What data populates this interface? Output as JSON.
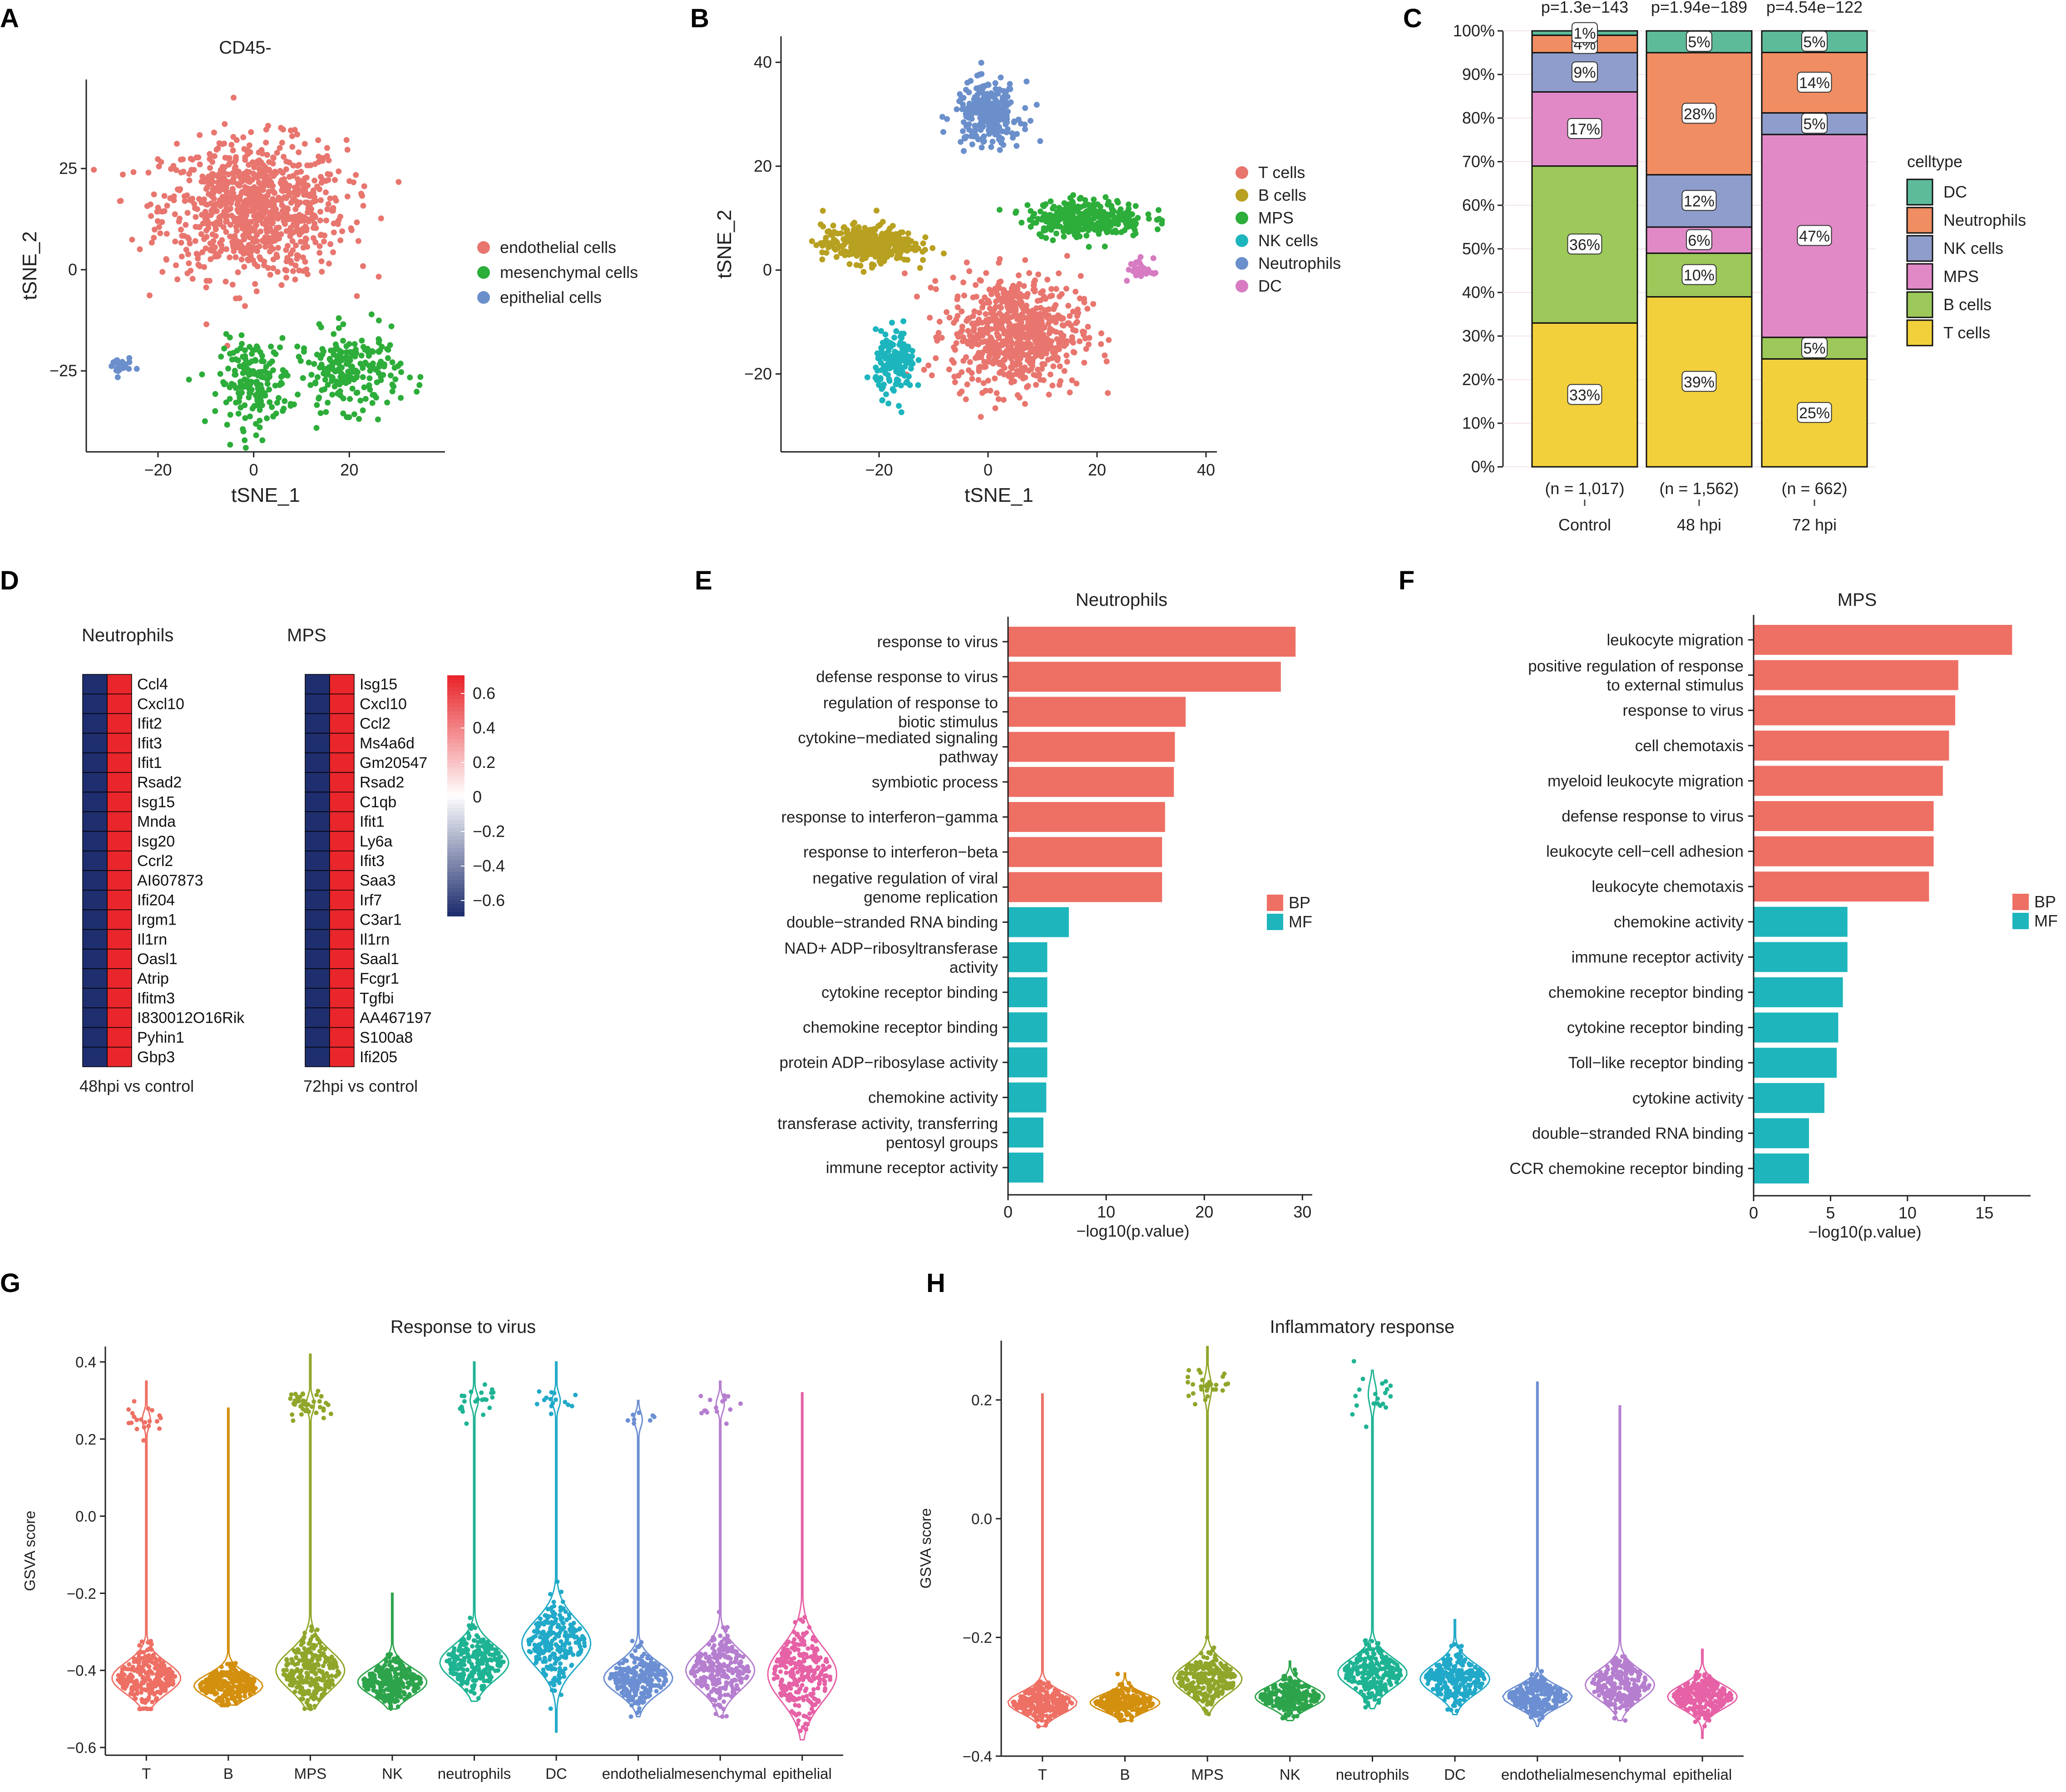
{
  "panels": {
    "A": {
      "label": "A",
      "title": "CD45-",
      "chart_data": {
        "type": "scatter",
        "xlabel": "tSNE_1",
        "ylabel": "tSNE_2",
        "xlim": [
          -35,
          40
        ],
        "ylim": [
          -45,
          47
        ],
        "xticks": [
          -20,
          0,
          20
        ],
        "yticks": [
          -25,
          0,
          25
        ],
        "xtick_labels": [
          "−20",
          "0",
          "20"
        ],
        "ytick_labels": [
          "−25",
          "0",
          "25"
        ],
        "legend": [
          {
            "name": "endothelial cells",
            "color": "#E8766F"
          },
          {
            "name": "mesenchymal cells",
            "color": "#2DAD3A"
          },
          {
            "name": "epithelial cells",
            "color": "#6A8FCB"
          }
        ],
        "clusters": [
          {
            "series": "endothelial cells",
            "cx": 0,
            "cy": 15,
            "sx": 16,
            "sy": 14,
            "n": 900
          },
          {
            "series": "mesenchymal cells",
            "cx": 0,
            "cy": -28,
            "sx": 6,
            "sy": 9,
            "n": 180
          },
          {
            "series": "mesenchymal cells",
            "cx": 20,
            "cy": -25,
            "sx": 9,
            "sy": 8,
            "n": 220
          },
          {
            "series": "epithelial cells",
            "cx": -28,
            "cy": -24,
            "sx": 2,
            "sy": 2,
            "n": 25
          }
        ]
      }
    },
    "B": {
      "label": "B",
      "chart_data": {
        "type": "scatter",
        "xlabel": "tSNE_1",
        "ylabel": "tSNE_2",
        "xlim": [
          -38,
          42
        ],
        "ylim": [
          -35,
          45
        ],
        "xticks": [
          -20,
          0,
          20,
          40
        ],
        "yticks": [
          -20,
          0,
          20,
          40
        ],
        "xtick_labels": [
          "−20",
          "0",
          "20",
          "40"
        ],
        "ytick_labels": [
          "−20",
          "0",
          "20",
          "40"
        ],
        "legend": [
          {
            "name": "T cells",
            "color": "#E8766F"
          },
          {
            "name": "B cells",
            "color": "#B8A020"
          },
          {
            "name": "MPS",
            "color": "#2DAD3A"
          },
          {
            "name": "NK cells",
            "color": "#1DB5BD"
          },
          {
            "name": "Neutrophils",
            "color": "#6A8FCB"
          },
          {
            "name": "DC",
            "color": "#D77BC2"
          }
        ],
        "clusters": [
          {
            "series": "T cells",
            "cx": 5,
            "cy": -12,
            "sx": 10,
            "sy": 9,
            "n": 700
          },
          {
            "series": "B cells",
            "cx": -22,
            "cy": 5,
            "sx": 7,
            "sy": 3,
            "n": 350
          },
          {
            "series": "MPS",
            "cx": 18,
            "cy": 10,
            "sx": 9,
            "sy": 3,
            "n": 300
          },
          {
            "series": "NK cells",
            "cx": -17,
            "cy": -18,
            "sx": 3,
            "sy": 5,
            "n": 150
          },
          {
            "series": "Neutrophils",
            "cx": 0,
            "cy": 30,
            "sx": 5,
            "sy": 5,
            "n": 250
          },
          {
            "series": "DC",
            "cx": 28,
            "cy": 0,
            "sx": 2,
            "sy": 2,
            "n": 30
          }
        ]
      }
    },
    "C": {
      "label": "C",
      "chart_data": {
        "type": "bar",
        "stacked": true,
        "categories": [
          "Control",
          "48 hpi",
          "72 hpi"
        ],
        "n_labels": [
          "(n = 1,017)",
          "(n = 1,562)",
          "(n = 662)"
        ],
        "pvalues": [
          "p=1.3e−143",
          "p=1.94e−189",
          "p=4.54e−122"
        ],
        "yticks": [
          "0%",
          "10%",
          "20%",
          "30%",
          "40%",
          "50%",
          "60%",
          "70%",
          "80%",
          "90%",
          "100%"
        ],
        "legend_title": "celltype",
        "series": [
          {
            "name": "T cells",
            "color": "#F2D03B",
            "values": [
              33,
              39,
              25
            ],
            "labels": [
              "33%",
              "39%",
              "25%"
            ]
          },
          {
            "name": "B cells",
            "color": "#9DC85A",
            "values": [
              36,
              10,
              5
            ],
            "labels": [
              "36%",
              "10%",
              "5%"
            ]
          },
          {
            "name": "MPS",
            "color": "#E189C7",
            "values": [
              17,
              6,
              47
            ],
            "labels": [
              "17%",
              "6%",
              "47%"
            ]
          },
          {
            "name": "NK cells",
            "color": "#8E9DCB",
            "values": [
              9,
              12,
              5
            ],
            "labels": [
              "9%",
              "12%",
              "5%"
            ]
          },
          {
            "name": "Neutrophils",
            "color": "#F08D62",
            "values": [
              4,
              28,
              14
            ],
            "labels": [
              "4%",
              "28%",
              "14%"
            ]
          },
          {
            "name": "DC",
            "color": "#5EBB9A",
            "values": [
              1,
              5,
              5
            ],
            "labels": [
              "1%",
              "5%",
              "5%"
            ]
          }
        ]
      }
    },
    "D": {
      "label": "D",
      "chart_data": {
        "type": "heatmap",
        "color_scale": {
          "min": -0.6,
          "max": 0.6,
          "low_color": "#1E2E6E",
          "mid_color": "#FFFFFF",
          "high_color": "#E8262B"
        },
        "colorbar_ticks": [
          "0.6",
          "0.4",
          "0.2",
          "0",
          "−0.2",
          "−0.4",
          "−0.6"
        ],
        "blocks": [
          {
            "title": "Neutrophils",
            "caption": "48hpi vs control",
            "genes": [
              "Ccl4",
              "Cxcl10",
              "Ifit2",
              "Ifit3",
              "Ifit1",
              "Rsad2",
              "Isg15",
              "Mnda",
              "Isg20",
              "Ccrl2",
              "AI607873",
              "Ifi204",
              "Irgm1",
              "Il1rn",
              "Oasl1",
              "Atrip",
              "Ifitm3",
              "I830012O16Rik",
              "Pyhin1",
              "Gbp3"
            ],
            "columns": [
              -0.6,
              0.6
            ]
          },
          {
            "title": "MPS",
            "caption": "72hpi vs control",
            "genes": [
              "Isg15",
              "Cxcl10",
              "Ccl2",
              "Ms4a6d",
              "Gm20547",
              "Rsad2",
              "C1qb",
              "Ifit1",
              "Ly6a",
              "Ifit3",
              "Saa3",
              "Irf7",
              "C3ar1",
              "Il1rn",
              "Saal1",
              "Fcgr1",
              "Tgfbi",
              "AA467197",
              "S100a8",
              "Ifi205"
            ],
            "columns": [
              -0.6,
              0.6
            ]
          }
        ]
      }
    },
    "E": {
      "label": "E",
      "title": "Neutrophils",
      "chart_data": {
        "type": "bar",
        "orientation": "horizontal",
        "xlabel": "−log10(p.value)",
        "xlim": [
          0,
          31
        ],
        "xticks": [
          0,
          10,
          20,
          30
        ],
        "legend": [
          {
            "name": "BP",
            "color": "#EE6F64"
          },
          {
            "name": "MF",
            "color": "#1EB5BD"
          }
        ],
        "bars": [
          {
            "term": [
              "response to virus"
            ],
            "value": 29.3,
            "group": "BP"
          },
          {
            "term": [
              "defense response to virus"
            ],
            "value": 27.8,
            "group": "BP"
          },
          {
            "term": [
              "regulation of response to",
              "biotic stimulus"
            ],
            "value": 18.1,
            "group": "BP"
          },
          {
            "term": [
              "cytokine−mediated signaling",
              "pathway"
            ],
            "value": 17.0,
            "group": "BP"
          },
          {
            "term": [
              "symbiotic process"
            ],
            "value": 16.9,
            "group": "BP"
          },
          {
            "term": [
              "response to interferon−gamma"
            ],
            "value": 16.0,
            "group": "BP"
          },
          {
            "term": [
              "response to interferon−beta"
            ],
            "value": 15.7,
            "group": "BP"
          },
          {
            "term": [
              "negative regulation of viral",
              "genome replication"
            ],
            "value": 15.7,
            "group": "BP"
          },
          {
            "term": [
              "double−stranded RNA binding"
            ],
            "value": 6.2,
            "group": "MF"
          },
          {
            "term": [
              "NAD+ ADP−ribosyltransferase",
              "activity"
            ],
            "value": 4.0,
            "group": "MF"
          },
          {
            "term": [
              "cytokine receptor binding"
            ],
            "value": 4.0,
            "group": "MF"
          },
          {
            "term": [
              "chemokine receptor binding"
            ],
            "value": 4.0,
            "group": "MF"
          },
          {
            "term": [
              "protein ADP−ribosylase activity"
            ],
            "value": 4.0,
            "group": "MF"
          },
          {
            "term": [
              "chemokine activity"
            ],
            "value": 3.9,
            "group": "MF"
          },
          {
            "term": [
              "transferase activity, transferring",
              "pentosyl groups"
            ],
            "value": 3.6,
            "group": "MF"
          },
          {
            "term": [
              "immune receptor activity"
            ],
            "value": 3.6,
            "group": "MF"
          }
        ]
      }
    },
    "F": {
      "label": "F",
      "title": "MPS",
      "chart_data": {
        "type": "bar",
        "orientation": "horizontal",
        "xlabel": "−log10(p.value)",
        "xlim": [
          0,
          18
        ],
        "xticks": [
          0,
          5,
          10,
          15
        ],
        "legend": [
          {
            "name": "BP",
            "color": "#EE6F64"
          },
          {
            "name": "MF",
            "color": "#1EB5BD"
          }
        ],
        "bars": [
          {
            "term": [
              "leukocyte migration"
            ],
            "value": 16.8,
            "group": "BP"
          },
          {
            "term": [
              "positive regulation of response",
              "to external stimulus"
            ],
            "value": 13.3,
            "group": "BP"
          },
          {
            "term": [
              "response to virus"
            ],
            "value": 13.1,
            "group": "BP"
          },
          {
            "term": [
              "cell chemotaxis"
            ],
            "value": 12.7,
            "group": "BP"
          },
          {
            "term": [
              "myeloid leukocyte migration"
            ],
            "value": 12.3,
            "group": "BP"
          },
          {
            "term": [
              "defense response to virus"
            ],
            "value": 11.7,
            "group": "BP"
          },
          {
            "term": [
              "leukocyte cell−cell adhesion"
            ],
            "value": 11.7,
            "group": "BP"
          },
          {
            "term": [
              "leukocyte chemotaxis"
            ],
            "value": 11.4,
            "group": "BP"
          },
          {
            "term": [
              "chemokine activity"
            ],
            "value": 6.1,
            "group": "MF"
          },
          {
            "term": [
              "immune receptor activity"
            ],
            "value": 6.1,
            "group": "MF"
          },
          {
            "term": [
              "chemokine receptor binding"
            ],
            "value": 5.8,
            "group": "MF"
          },
          {
            "term": [
              "cytokine receptor binding"
            ],
            "value": 5.5,
            "group": "MF"
          },
          {
            "term": [
              "Toll−like receptor binding"
            ],
            "value": 5.4,
            "group": "MF"
          },
          {
            "term": [
              "cytokine activity"
            ],
            "value": 4.6,
            "group": "MF"
          },
          {
            "term": [
              "double−stranded RNA binding"
            ],
            "value": 3.6,
            "group": "MF"
          },
          {
            "term": [
              "CCR chemokine receptor binding"
            ],
            "value": 3.6,
            "group": "MF"
          }
        ]
      }
    },
    "G": {
      "label": "G",
      "title": "Response to virus",
      "chart_data": {
        "type": "violin",
        "ylabel": "GSVA score",
        "ylim": [
          -0.62,
          0.44
        ],
        "yticks": [
          -0.6,
          -0.4,
          -0.2,
          0.0,
          0.2,
          0.4
        ],
        "ytick_labels": [
          "−0.6",
          "−0.4",
          "−0.2",
          "0.0",
          "0.2",
          "0.4"
        ],
        "groups": [
          {
            "name": "T",
            "color": "#EE6F64",
            "median": -0.42,
            "min": -0.5,
            "max": 0.35,
            "spread": 0.04,
            "outlier_center": 0.25,
            "outliers": 20
          },
          {
            "name": "B",
            "color": "#D38F0E",
            "median": -0.44,
            "min": -0.49,
            "max": 0.28,
            "spread": 0.03,
            "outlier_center": 0.0,
            "outliers": 0
          },
          {
            "name": "MPS",
            "color": "#8FA62A",
            "median": -0.4,
            "min": -0.5,
            "max": 0.42,
            "spread": 0.05,
            "outlier_center": 0.29,
            "outliers": 40
          },
          {
            "name": "NK",
            "color": "#2DA44B",
            "median": -0.43,
            "min": -0.5,
            "max": -0.2,
            "spread": 0.035,
            "outlier_center": 0.0,
            "outliers": 0
          },
          {
            "name": "neutrophils",
            "color": "#1EB393",
            "median": -0.38,
            "min": -0.48,
            "max": 0.4,
            "spread": 0.045,
            "outlier_center": 0.3,
            "outliers": 22
          },
          {
            "name": "DC",
            "color": "#21A9C9",
            "median": -0.33,
            "min": -0.56,
            "max": 0.4,
            "spread": 0.06,
            "outlier_center": 0.3,
            "outliers": 15
          },
          {
            "name": "endothelial",
            "color": "#6B8FD2",
            "median": -0.42,
            "min": -0.52,
            "max": 0.3,
            "spread": 0.04,
            "outlier_center": 0.25,
            "outliers": 8
          },
          {
            "name": "mesenchymal",
            "color": "#B57ECF",
            "median": -0.4,
            "min": -0.52,
            "max": 0.35,
            "spread": 0.05,
            "outlier_center": 0.29,
            "outliers": 15
          },
          {
            "name": "epithelial",
            "color": "#E661A6",
            "median": -0.41,
            "min": -0.58,
            "max": 0.32,
            "spread": 0.07,
            "outlier_center": 0.0,
            "outliers": 0
          }
        ]
      }
    },
    "H": {
      "label": "H",
      "title": "Inflammatory response",
      "chart_data": {
        "type": "violin",
        "ylabel": "GSVA score",
        "ylim": [
          -0.4,
          0.3
        ],
        "yticks": [
          -0.4,
          -0.2,
          0.0,
          0.2
        ],
        "ytick_labels": [
          "−0.4",
          "−0.2",
          "0.0",
          "0.2"
        ],
        "groups": [
          {
            "name": "T",
            "color": "#EE6F64",
            "median": -0.31,
            "min": -0.35,
            "max": 0.21,
            "spread": 0.018,
            "outlier_center": 0.0,
            "outliers": 0
          },
          {
            "name": "B",
            "color": "#D38F0E",
            "median": -0.31,
            "min": -0.34,
            "max": -0.26,
            "spread": 0.015,
            "outlier_center": 0.0,
            "outliers": 0
          },
          {
            "name": "MPS",
            "color": "#8FA62A",
            "median": -0.27,
            "min": -0.33,
            "max": 0.29,
            "spread": 0.025,
            "outlier_center": 0.22,
            "outliers": 30
          },
          {
            "name": "NK",
            "color": "#2DA44B",
            "median": -0.3,
            "min": -0.34,
            "max": -0.24,
            "spread": 0.018,
            "outlier_center": 0.0,
            "outliers": 0
          },
          {
            "name": "neutrophils",
            "color": "#1EB393",
            "median": -0.26,
            "min": -0.32,
            "max": 0.25,
            "spread": 0.025,
            "outlier_center": 0.21,
            "outliers": 20
          },
          {
            "name": "DC",
            "color": "#21A9C9",
            "median": -0.27,
            "min": -0.33,
            "max": -0.17,
            "spread": 0.025,
            "outlier_center": 0.0,
            "outliers": 0
          },
          {
            "name": "endothelial",
            "color": "#6B8FD2",
            "median": -0.3,
            "min": -0.35,
            "max": 0.23,
            "spread": 0.018,
            "outlier_center": 0.0,
            "outliers": 0
          },
          {
            "name": "mesenchymal",
            "color": "#B57ECF",
            "median": -0.28,
            "min": -0.34,
            "max": 0.19,
            "spread": 0.025,
            "outlier_center": 0.0,
            "outliers": 0
          },
          {
            "name": "epithelial",
            "color": "#E661A6",
            "median": -0.3,
            "min": -0.37,
            "max": -0.22,
            "spread": 0.02,
            "outlier_center": 0.0,
            "outliers": 0
          }
        ]
      }
    }
  }
}
